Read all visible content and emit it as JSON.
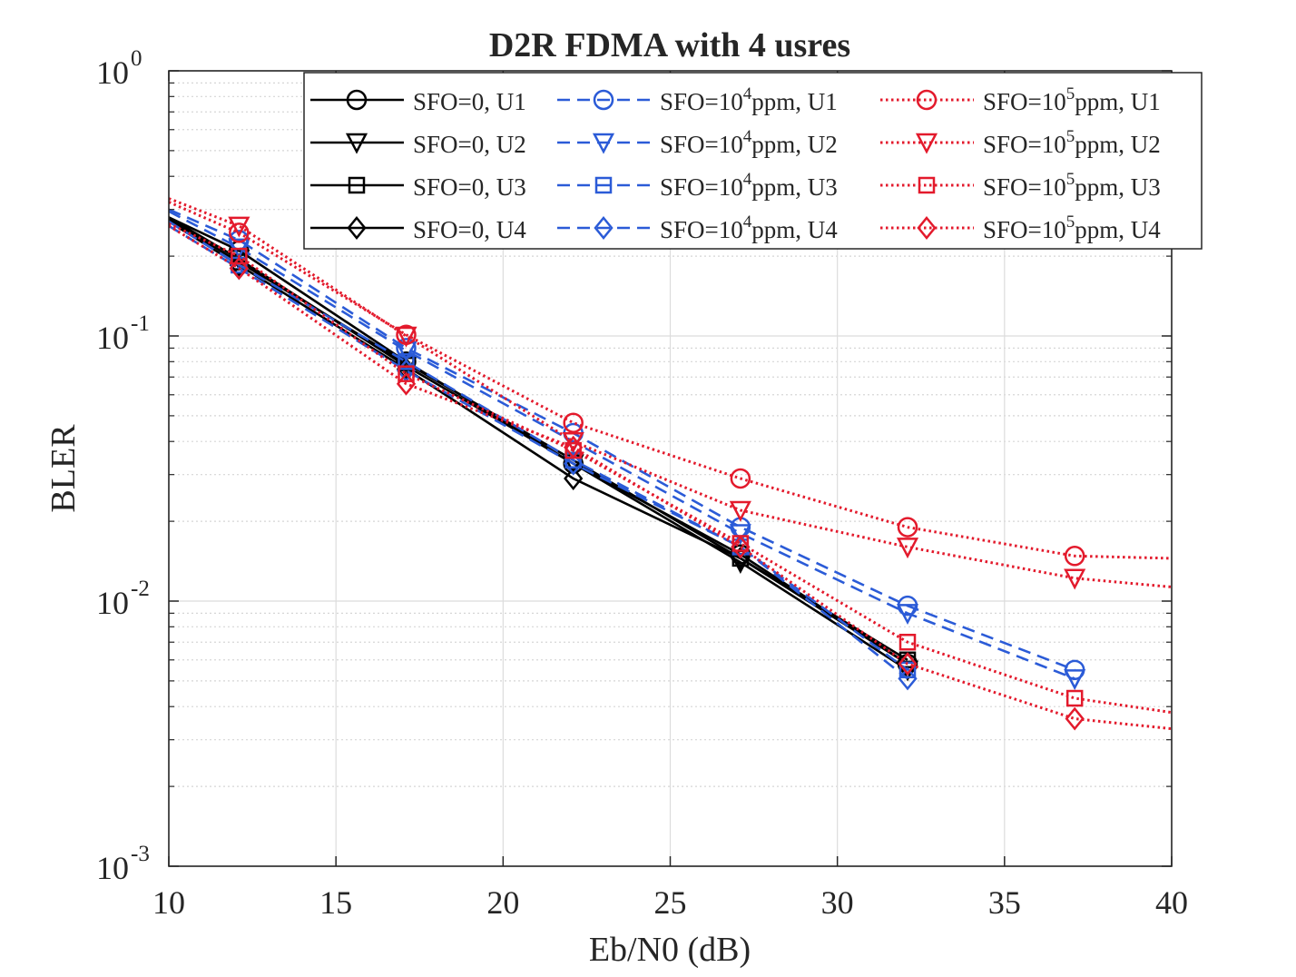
{
  "chart_data": {
    "type": "line",
    "title": "D2R FDMA with 4 usres",
    "xlabel": "Eb/N0 (dB)",
    "ylabel": "BLER",
    "xlim": [
      10,
      40
    ],
    "ylim": [
      0.001,
      1
    ],
    "yscale": "log",
    "grid": true,
    "minor_grid": true,
    "legend_position": "top-right",
    "x_ticks": [
      10,
      15,
      20,
      25,
      30,
      35,
      40
    ],
    "x_tick_labels": [
      "10",
      "15",
      "20",
      "25",
      "30",
      "35",
      "40"
    ],
    "y_ticks": [
      {
        "value": 1,
        "base": "10",
        "exp": "0"
      },
      {
        "value": 0.1,
        "base": "10",
        "exp": "-1"
      },
      {
        "value": 0.01,
        "base": "10",
        "exp": "-2"
      },
      {
        "value": 0.001,
        "base": "10",
        "exp": "-3"
      }
    ],
    "colors": {
      "black": "#000000",
      "blue": "#2b5bd7",
      "red": "#e31a2c",
      "axis": "#262626",
      "grid": "#dcdcdc"
    },
    "series": [
      {
        "name_prefix": "SFO=0, U1",
        "name_exp": "",
        "name_suffix": "",
        "color": "#000000",
        "dash": "solid",
        "marker": "circle",
        "x": [
          10,
          12.1,
          17.1,
          22.1,
          27.1,
          32.1
        ],
        "y": [
          0.28,
          0.21,
          0.08,
          0.033,
          0.015,
          0.0058
        ]
      },
      {
        "name_prefix": "SFO=0, U2",
        "name_exp": "",
        "name_suffix": "",
        "color": "#000000",
        "dash": "solid",
        "marker": "triangle-down",
        "x": [
          10,
          12.1,
          17.1,
          22.1,
          27.1,
          32.1
        ],
        "y": [
          0.28,
          0.195,
          0.077,
          0.033,
          0.014,
          0.0055
        ]
      },
      {
        "name_prefix": "SFO=0, U3",
        "name_exp": "",
        "name_suffix": "",
        "color": "#000000",
        "dash": "solid",
        "marker": "square",
        "x": [
          10,
          12.1,
          17.1,
          22.1,
          27.1,
          32.1
        ],
        "y": [
          0.275,
          0.19,
          0.079,
          0.034,
          0.0145,
          0.006
        ]
      },
      {
        "name_prefix": "SFO=0, U4",
        "name_exp": "",
        "name_suffix": "",
        "color": "#000000",
        "dash": "solid",
        "marker": "diamond",
        "x": [
          10,
          12.1,
          17.1,
          22.1,
          27.1,
          32.1
        ],
        "y": [
          0.27,
          0.185,
          0.075,
          0.029,
          0.0145,
          0.0058
        ]
      },
      {
        "name_prefix": "SFO=10",
        "name_exp": "4",
        "name_suffix": "ppm, U1",
        "color": "#2b5bd7",
        "dash": "dashed",
        "marker": "circle",
        "x": [
          10,
          12.1,
          17.1,
          22.1,
          27.1,
          32.1,
          37.1
        ],
        "y": [
          0.3,
          0.23,
          0.09,
          0.043,
          0.019,
          0.0096,
          0.0055
        ]
      },
      {
        "name_prefix": "SFO=10",
        "name_exp": "4",
        "name_suffix": "ppm, U2",
        "color": "#2b5bd7",
        "dash": "dashed",
        "marker": "triangle-down",
        "x": [
          10,
          12.1,
          17.1,
          22.1,
          27.1,
          32.1,
          37.1
        ],
        "y": [
          0.295,
          0.215,
          0.088,
          0.04,
          0.018,
          0.009,
          0.0051
        ]
      },
      {
        "name_prefix": "SFO=10",
        "name_exp": "4",
        "name_suffix": "ppm, U3",
        "color": "#2b5bd7",
        "dash": "dashed",
        "marker": "square",
        "x": [
          10,
          12.1,
          17.1,
          22.1,
          27.1,
          32.1
        ],
        "y": [
          0.27,
          0.185,
          0.08,
          0.034,
          0.016,
          0.0055
        ]
      },
      {
        "name_prefix": "SFO=10",
        "name_exp": "4",
        "name_suffix": "ppm, U4",
        "color": "#2b5bd7",
        "dash": "dashed",
        "marker": "diamond",
        "x": [
          10,
          12.1,
          17.1,
          22.1,
          27.1,
          32.1
        ],
        "y": [
          0.26,
          0.18,
          0.074,
          0.033,
          0.016,
          0.0051
        ]
      },
      {
        "name_prefix": "SFO=10",
        "name_exp": "5",
        "name_suffix": "ppm, U1",
        "color": "#e31a2c",
        "dash": "dotted",
        "marker": "circle",
        "x": [
          10,
          12.1,
          17.1,
          22.1,
          27.1,
          32.1,
          37.1,
          40
        ],
        "y": [
          0.32,
          0.245,
          0.101,
          0.047,
          0.029,
          0.019,
          0.0148,
          0.0145
        ]
      },
      {
        "name_prefix": "SFO=10",
        "name_exp": "5",
        "name_suffix": "ppm, U2",
        "color": "#e31a2c",
        "dash": "dotted",
        "marker": "triangle-down",
        "x": [
          10,
          12.1,
          17.1,
          22.1,
          27.1,
          32.1,
          37.1,
          40
        ],
        "y": [
          0.33,
          0.26,
          0.1,
          0.04,
          0.022,
          0.016,
          0.0122,
          0.0113
        ]
      },
      {
        "name_prefix": "SFO=10",
        "name_exp": "5",
        "name_suffix": "ppm, U3",
        "color": "#e31a2c",
        "dash": "dotted",
        "marker": "square",
        "x": [
          10,
          12.1,
          17.1,
          22.1,
          27.1,
          32.1,
          37.1,
          40
        ],
        "y": [
          0.265,
          0.2,
          0.072,
          0.037,
          0.0165,
          0.007,
          0.0043,
          0.0038
        ]
      },
      {
        "name_prefix": "SFO=10",
        "name_exp": "5",
        "name_suffix": "ppm, U4",
        "color": "#e31a2c",
        "dash": "dotted",
        "marker": "diamond",
        "x": [
          10,
          12.1,
          17.1,
          22.1,
          27.1,
          32.1,
          37.1,
          40
        ],
        "y": [
          0.26,
          0.18,
          0.066,
          0.038,
          0.016,
          0.0058,
          0.0036,
          0.0033
        ]
      }
    ]
  }
}
